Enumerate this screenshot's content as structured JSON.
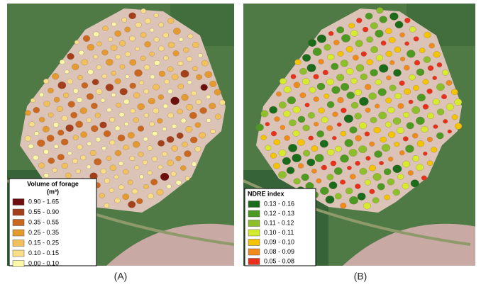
{
  "panels": [
    {
      "label": "(A)",
      "legend": {
        "title": "Volume of forage",
        "unit": "(m³)",
        "items": [
          "0.90 - 1.65",
          "0.55 - 0.90",
          "0.35 - 0.55",
          "0.25 - 0.35",
          "0.15 - 0.25",
          "0.10 - 0.15",
          "0.00 - 0.10"
        ]
      }
    },
    {
      "label": "(B)",
      "legend": {
        "title": "NDRE index",
        "items": [
          "0.13 - 0.16",
          "0.12 - 0.13",
          "0.11 - 0.12",
          "0.10 - 0.11",
          "0.09 - 0.10",
          "0.08 - 0.09",
          "0.05 - 0.08"
        ]
      }
    }
  ]
}
